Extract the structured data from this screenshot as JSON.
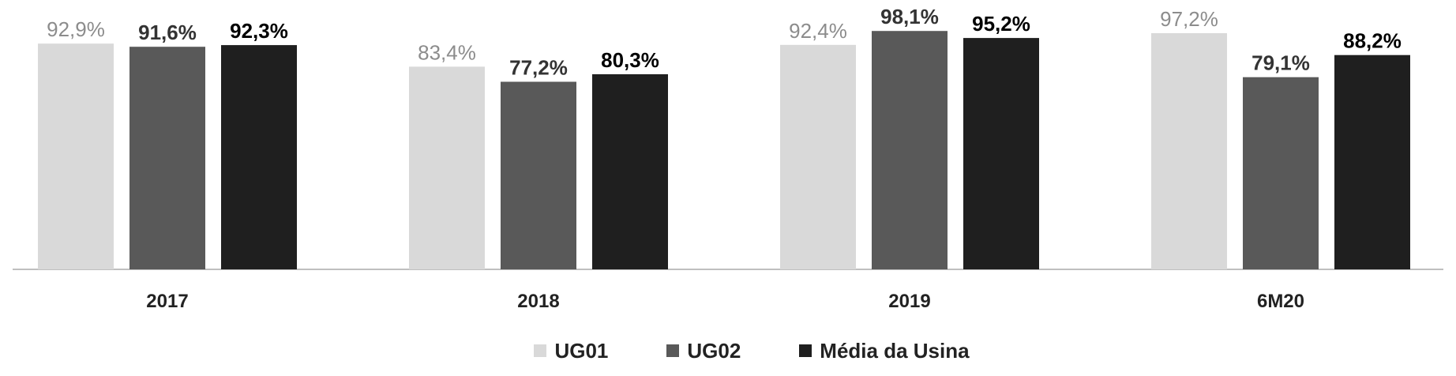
{
  "chart_data": {
    "type": "bar",
    "categories": [
      "2017",
      "2018",
      "2019",
      "6M20"
    ],
    "series": [
      {
        "name": "UG01",
        "values": [
          92.9,
          83.4,
          92.4,
          97.2
        ],
        "labels": [
          "92,9%",
          "83,4%",
          "92,4%",
          "97,2%"
        ],
        "color": "#d9d9d9",
        "label_color": "#8c8c8c",
        "label_weight": "normal"
      },
      {
        "name": "UG02",
        "values": [
          91.6,
          77.2,
          98.1,
          79.1
        ],
        "labels": [
          "91,6%",
          "77,2%",
          "98,1%",
          "79,1%"
        ],
        "color": "#595959",
        "label_color": "#333333",
        "label_weight": "bold"
      },
      {
        "name": "Média da Usina",
        "values": [
          92.3,
          80.3,
          95.2,
          88.2
        ],
        "labels": [
          "92,3%",
          "80,3%",
          "95,2%",
          "88,2%"
        ],
        "color": "#1f1f1f",
        "label_color": "#000000",
        "label_weight": "bold"
      }
    ],
    "title": "",
    "xlabel": "",
    "ylabel": "",
    "ylim": [
      0,
      100
    ],
    "grid": false,
    "legend": "bottom"
  }
}
